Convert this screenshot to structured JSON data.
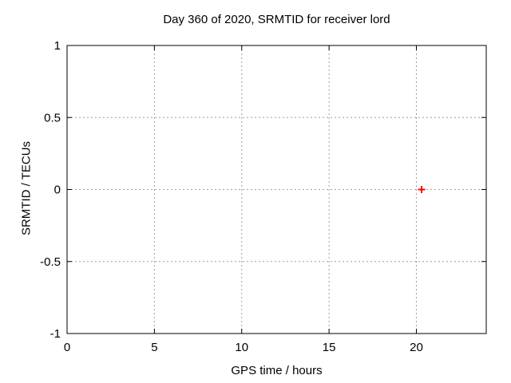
{
  "window": {
    "background": "#ffffff"
  },
  "chart_data": {
    "type": "scatter",
    "title": "Day 360 of 2020, SRMTID for receiver lord",
    "xlabel": "GPS time / hours",
    "ylabel": "SRMTID / TECUs",
    "xlim": [
      0,
      24
    ],
    "ylim": [
      -1,
      1
    ],
    "xticks": [
      0,
      5,
      10,
      15,
      20
    ],
    "xtick_labels": [
      "0",
      "5",
      "10",
      "15",
      "20"
    ],
    "yticks": [
      -1,
      -0.5,
      0,
      0.5,
      1
    ],
    "ytick_labels": [
      "-1",
      "-0.5",
      "0",
      "0.5",
      "1"
    ],
    "grid": true,
    "grid_style": "dashed",
    "legend_position": "none",
    "series": [
      {
        "marker": "plus",
        "color": "#ff0000",
        "points": [
          {
            "x": 20.3,
            "y": 0.0
          }
        ]
      }
    ],
    "colors": {
      "axis": "#000000",
      "grid": "#a0a0a0",
      "text": "#000000",
      "background": "#ffffff"
    }
  }
}
